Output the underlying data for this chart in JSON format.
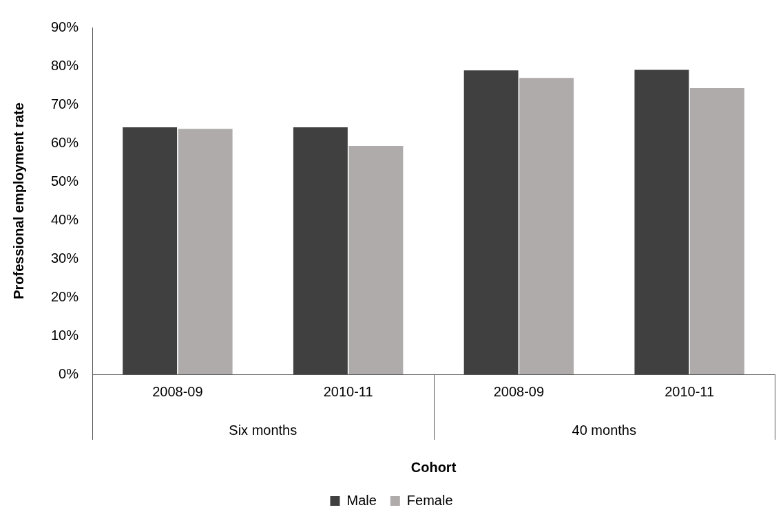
{
  "chart_data": {
    "type": "bar",
    "xlabel": "Cohort",
    "ylabel": "Professional employment rate",
    "categories": [
      "2008-09",
      "2010-11",
      "2008-09",
      "2010-11"
    ],
    "series": [
      {
        "name": "Male",
        "color": "#404040",
        "values": [
          64.1,
          64.1,
          78.9,
          79.0
        ]
      },
      {
        "name": "Female",
        "color": "#aeabaa",
        "values": [
          63.7,
          59.3,
          76.9,
          74.3
        ]
      }
    ],
    "annotations": [
      "Six months",
      "40 months"
    ],
    "ylim": [
      0,
      90
    ],
    "yticks": [
      {
        "value": 0,
        "label": "0%"
      },
      {
        "value": 10,
        "label": "10%"
      },
      {
        "value": 20,
        "label": "20%"
      },
      {
        "value": 30,
        "label": "30%"
      },
      {
        "value": 40,
        "label": "40%"
      },
      {
        "value": 50,
        "label": "50%"
      },
      {
        "value": 60,
        "label": "60%"
      },
      {
        "value": 70,
        "label": "70%"
      },
      {
        "value": 80,
        "label": "80%"
      },
      {
        "value": 90,
        "label": "90%"
      }
    ],
    "grid": false,
    "legend": "bottom"
  }
}
